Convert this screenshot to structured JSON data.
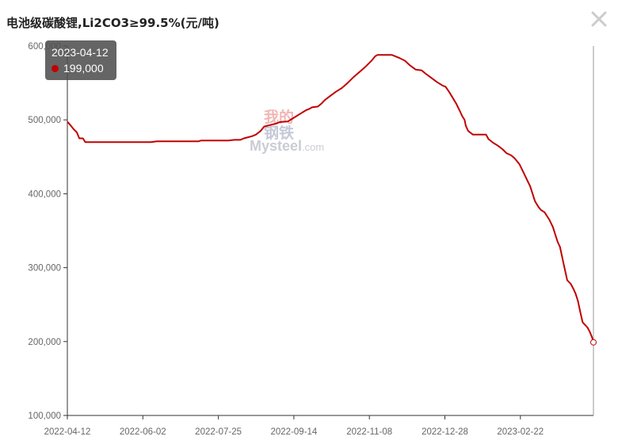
{
  "title": "电池级碳酸锂,Li2CO3≥99.5%(元/吨)",
  "close_icon": "close-icon",
  "tooltip": {
    "date": "2023-04-12",
    "value": "199,000",
    "marker_color": "#c00000"
  },
  "watermark": {
    "chinese_1": "我的",
    "chinese_2": "钢铁",
    "english": "Mysteel",
    "domain": ".com"
  },
  "colors": {
    "line": "#c00000",
    "axis": "#333333",
    "tick_text": "#666666"
  },
  "chart_data": {
    "type": "line",
    "title": "电池级碳酸锂,Li2CO3≥99.5%(元/吨)",
    "xlabel": "",
    "ylabel": "",
    "ylim": [
      100000,
      600000
    ],
    "y_ticks": [
      100000,
      200000,
      300000,
      400000,
      500000,
      600000
    ],
    "y_tick_labels": [
      "100,000",
      "200,000",
      "300,000",
      "400,000",
      "500,000",
      "600,000"
    ],
    "x_tick_labels": [
      "2022-04-12",
      "2022-06-02",
      "2022-07-25",
      "2022-09-14",
      "2022-11-08",
      "2022-12-28",
      "2023-02-22"
    ],
    "grid": false,
    "series": [
      {
        "values": [
          [
            0,
            497500
          ],
          [
            2,
            494000
          ],
          [
            5,
            488000
          ],
          [
            8,
            483000
          ],
          [
            10,
            475000
          ],
          [
            13,
            475000
          ],
          [
            15,
            470000
          ],
          [
            40,
            470000
          ],
          [
            60,
            470000
          ],
          [
            70,
            470000
          ],
          [
            75,
            471000
          ],
          [
            95,
            471000
          ],
          [
            110,
            471000
          ],
          [
            112,
            472000
          ],
          [
            135,
            472000
          ],
          [
            140,
            473000
          ],
          [
            145,
            473000
          ],
          [
            148,
            475000
          ],
          [
            155,
            478000
          ],
          [
            158,
            480000
          ],
          [
            162,
            485000
          ],
          [
            165,
            491000
          ],
          [
            170,
            493000
          ],
          [
            175,
            495000
          ],
          [
            178,
            497000
          ],
          [
            185,
            498000
          ],
          [
            190,
            503000
          ],
          [
            195,
            508000
          ],
          [
            200,
            513000
          ],
          [
            203,
            515000
          ],
          [
            205,
            517000
          ],
          [
            210,
            518000
          ],
          [
            213,
            522000
          ],
          [
            216,
            527000
          ],
          [
            220,
            532000
          ],
          [
            225,
            538000
          ],
          [
            230,
            543000
          ],
          [
            235,
            550000
          ],
          [
            240,
            558000
          ],
          [
            245,
            565000
          ],
          [
            250,
            572000
          ],
          [
            255,
            580000
          ],
          [
            258,
            586000
          ],
          [
            260,
            588000
          ],
          [
            265,
            588000
          ],
          [
            272,
            588000
          ],
          [
            278,
            584000
          ],
          [
            283,
            580000
          ],
          [
            287,
            574000
          ],
          [
            292,
            568000
          ],
          [
            297,
            567000
          ],
          [
            300,
            563000
          ],
          [
            305,
            557000
          ],
          [
            310,
            551000
          ],
          [
            315,
            546000
          ],
          [
            317,
            545000
          ],
          [
            320,
            538000
          ],
          [
            323,
            530000
          ],
          [
            326,
            522000
          ],
          [
            329,
            512000
          ],
          [
            331,
            505000
          ],
          [
            333,
            500000
          ],
          [
            334,
            492000
          ],
          [
            336,
            485000
          ],
          [
            340,
            480000
          ],
          [
            345,
            480000
          ],
          [
            351,
            480000
          ],
          [
            353,
            474000
          ],
          [
            357,
            469000
          ],
          [
            361,
            465000
          ],
          [
            365,
            460000
          ],
          [
            368,
            455000
          ],
          [
            372,
            452000
          ],
          [
            375,
            448000
          ],
          [
            379,
            440000
          ],
          [
            382,
            430000
          ],
          [
            385,
            420000
          ],
          [
            388,
            410000
          ],
          [
            390,
            400000
          ],
          [
            392,
            390000
          ],
          [
            395,
            382000
          ],
          [
            397,
            378000
          ],
          [
            400,
            375000
          ],
          [
            404,
            365000
          ],
          [
            407,
            355000
          ],
          [
            409,
            345000
          ],
          [
            411,
            335000
          ],
          [
            413,
            328000
          ],
          [
            416,
            305000
          ],
          [
            419,
            283000
          ],
          [
            422,
            278000
          ],
          [
            424,
            272000
          ],
          [
            426,
            265000
          ],
          [
            428,
            255000
          ],
          [
            430,
            240000
          ],
          [
            432,
            226000
          ],
          [
            436,
            219000
          ],
          [
            438,
            213000
          ],
          [
            440,
            205000
          ],
          [
            441,
            199000
          ]
        ]
      }
    ]
  }
}
